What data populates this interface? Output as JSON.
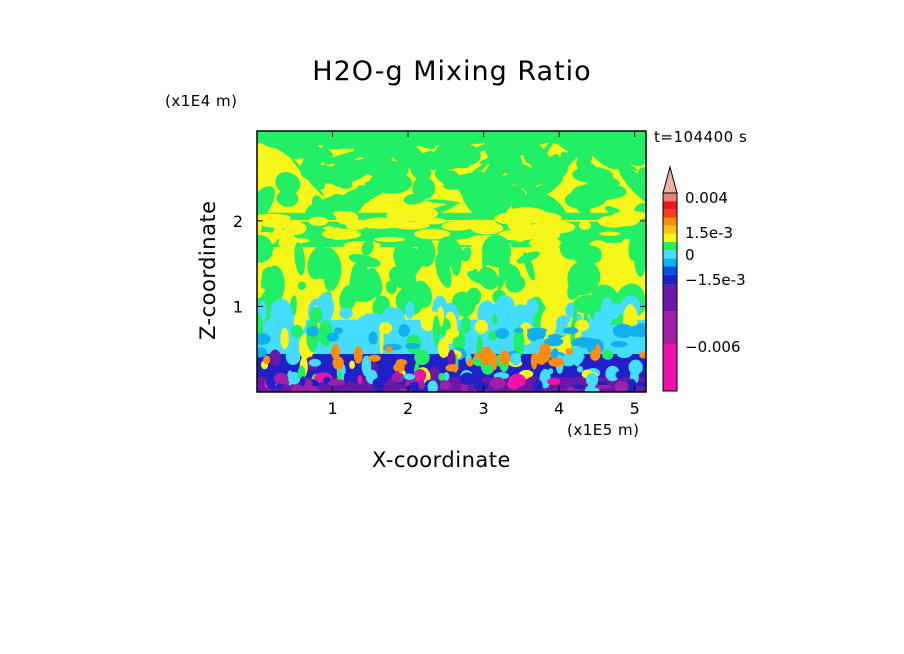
{
  "chart_data": {
    "type": "heatmap",
    "title": "H2O-g Mixing Ratio",
    "time_label": "t=104400 s",
    "xlabel": "X-coordinate",
    "ylabel": "Z-coordinate",
    "x_multiplier": "(x1E5 m)",
    "y_multiplier": "(x1E4 m)",
    "xlim": [
      0,
      5.15
    ],
    "ylim": [
      0,
      3.05
    ],
    "x_ticks": [
      {
        "value": 1,
        "label": "1"
      },
      {
        "value": 2,
        "label": "2"
      },
      {
        "value": 3,
        "label": "3"
      },
      {
        "value": 4,
        "label": "4"
      },
      {
        "value": 5,
        "label": "5"
      }
    ],
    "y_ticks": [
      {
        "value": 1,
        "label": "1"
      },
      {
        "value": 2,
        "label": "2"
      }
    ],
    "colorbar": {
      "levels": [
        "#ee11aa",
        "#a020a8",
        "#6a18a8",
        "#2020c8",
        "#0a50e0",
        "#10b0f0",
        "#44ddff",
        "#22ee66",
        "#f6f61a",
        "#ffc30f",
        "#ff8c10",
        "#ff3818",
        "#e81818",
        "#f08070",
        "#f0b0a8"
      ],
      "labels": [
        "0.004",
        "1.5e-3",
        "0",
        "−1.5e-3",
        "−0.006"
      ]
    },
    "field_layers": [
      {
        "z_range": [
          0.0,
          0.18
        ],
        "dominant": "#6a18a8"
      },
      {
        "z_range": [
          0.18,
          0.45
        ],
        "dominant": "#2020c8"
      },
      {
        "z_range": [
          0.45,
          0.85
        ],
        "dominant": "#44ddff"
      },
      {
        "z_range": [
          0.85,
          1.7
        ],
        "dominant": "#f6f61a"
      },
      {
        "z_range": [
          1.7,
          2.1
        ],
        "dominant": "#22ee66"
      },
      {
        "z_range": [
          2.1,
          3.05
        ],
        "dominant": "#f6f61a"
      }
    ]
  }
}
